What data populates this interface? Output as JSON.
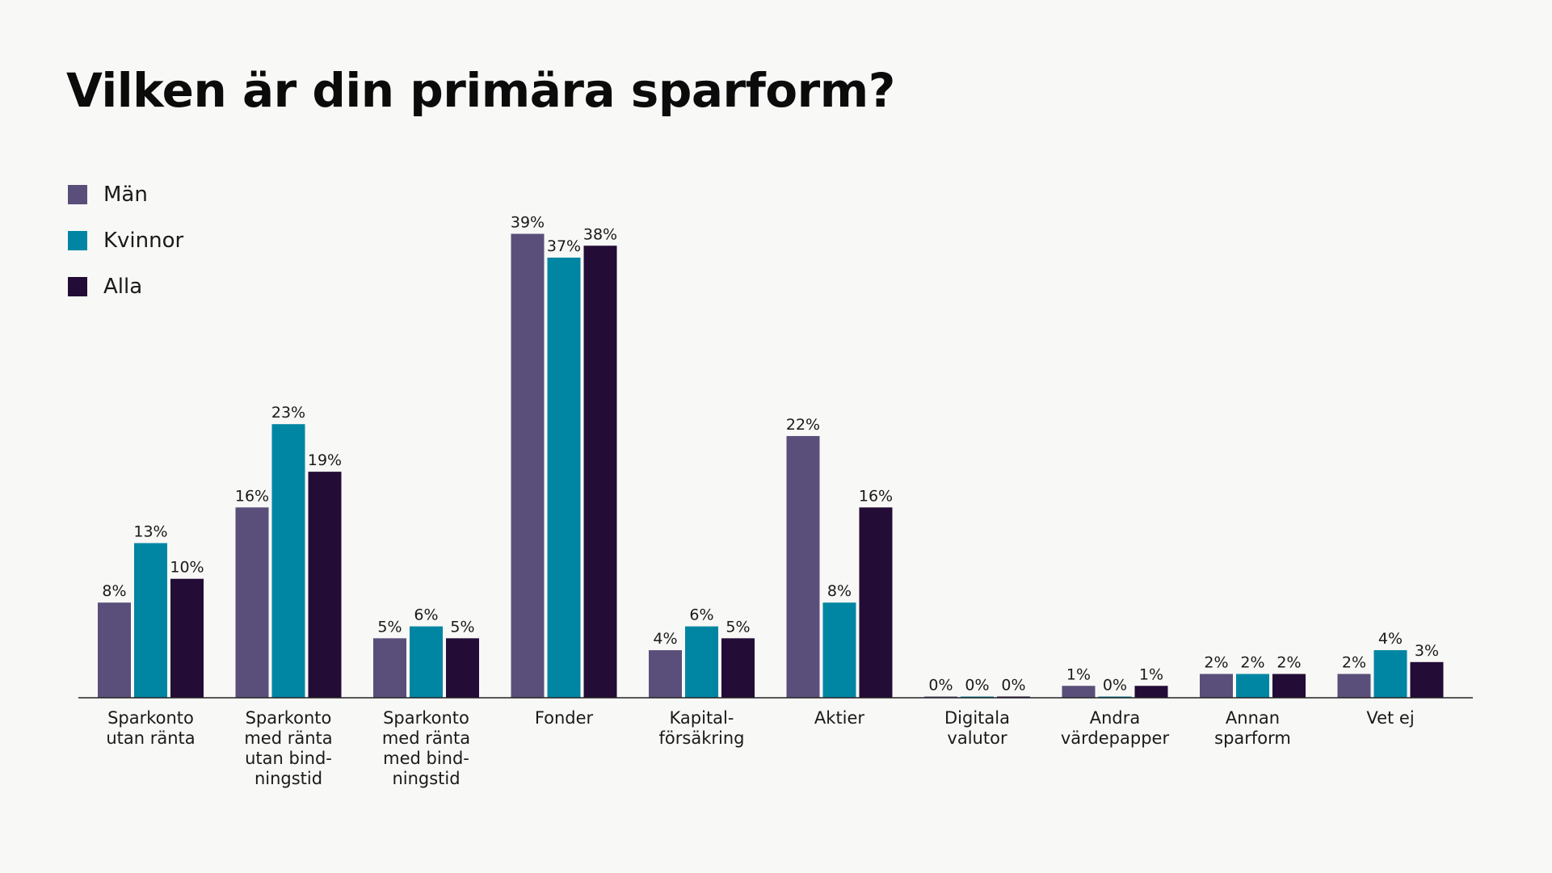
{
  "chart_data": {
    "type": "bar",
    "title": "Vilken är din primära sparform?",
    "categories": [
      [
        "Sparkonto",
        "utan ränta"
      ],
      [
        "Sparkonto",
        "med ränta",
        "utan bind-",
        "ningstid"
      ],
      [
        "Sparkonto",
        "med ränta",
        "med bind-",
        "ningstid"
      ],
      [
        "Fonder"
      ],
      [
        "Kapital-",
        "försäkring"
      ],
      [
        "Aktier"
      ],
      [
        "Digitala",
        "valutor"
      ],
      [
        "Andra",
        "värdepapper"
      ],
      [
        "Annan",
        "sparform"
      ],
      [
        "Vet ej"
      ]
    ],
    "series": [
      {
        "name": "Män",
        "color": "#5a4f7a",
        "values": [
          8,
          16,
          5,
          39,
          4,
          22,
          0,
          1,
          2,
          2
        ]
      },
      {
        "name": "Kvinnor",
        "color": "#0086a3",
        "values": [
          13,
          23,
          6,
          37,
          6,
          8,
          0,
          0,
          2,
          4
        ]
      },
      {
        "name": "Alla",
        "color": "#230c36",
        "values": [
          10,
          19,
          5,
          38,
          5,
          16,
          0,
          1,
          2,
          3
        ]
      }
    ],
    "value_suffix": "%",
    "ylim": [
      0,
      40
    ],
    "legend_position": "top-left",
    "grid": false
  }
}
